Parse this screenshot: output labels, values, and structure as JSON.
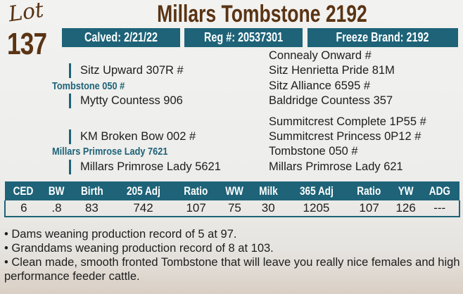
{
  "lot": {
    "label": "Lot",
    "number": "137"
  },
  "title": "Millars Tombstone 2192",
  "info": {
    "calved": "Calved: 2/21/22",
    "reg": "Reg #: 20537301",
    "freeze_brand": "Freeze Brand: 2192"
  },
  "pedigree": {
    "sire": {
      "name": "Tombstone 050 #",
      "sire": "Sitz Upward 307R #",
      "dam": "Mytty Countess 906",
      "grand": [
        "Connealy Onward #",
        "Sitz Henrietta Pride 81M",
        "Sitz Alliance 6595 #",
        "Baldridge Countess 357"
      ]
    },
    "dam": {
      "name": "Millars Primrose Lady 7621",
      "sire": "KM Broken Bow 002 #",
      "dam": "Millars Primrose Lady 5621",
      "grand": [
        "Summitcrest Complete 1P55 #",
        "Summitcrest Princess 0P12 #",
        "Tombstone 050 #",
        "Millars Primrose Lady 621"
      ]
    }
  },
  "table": {
    "headers": [
      "CED",
      "BW",
      "Birth",
      "205 Adj",
      "Ratio",
      "WW",
      "Milk",
      "365 Adj",
      "Ratio",
      "YW",
      "ADG"
    ],
    "values": [
      "6",
      ".8",
      "83",
      "742",
      "107",
      "75",
      "30",
      "1205",
      "107",
      "126",
      "---"
    ]
  },
  "notes": [
    "• Dams weaning production record of 5 at 97.",
    "• Granddams weaning production record of 8 at 103.",
    "• Clean made, smooth fronted Tombstone that will leave you really nice females and high performance feeder cattle."
  ],
  "colors": {
    "brown": "#5a3414",
    "teal": "#1e6378"
  }
}
